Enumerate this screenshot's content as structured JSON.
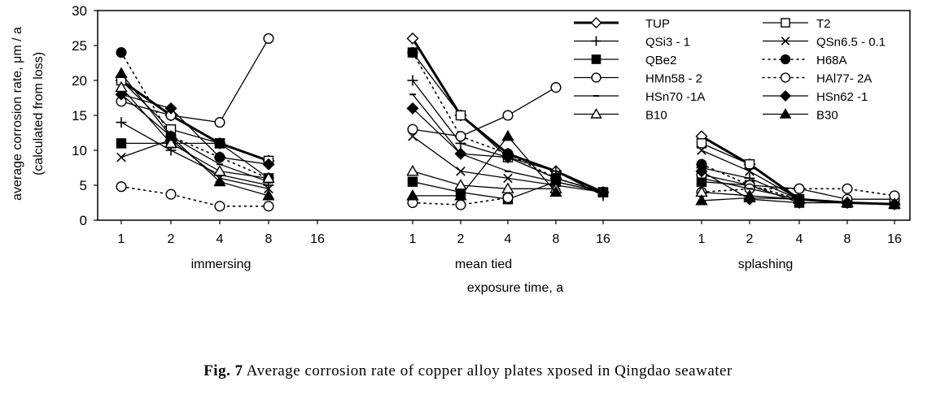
{
  "chart_data": {
    "type": "line",
    "ylabel_line1": "average corrosion rate, μm / a",
    "ylabel_line2": "(calculated from loss)",
    "xlabel": "exposure time, a",
    "ylim": [
      0,
      30
    ],
    "yticks": [
      0,
      5,
      10,
      15,
      20,
      25,
      30
    ],
    "grid": false,
    "legend_position": "top-right",
    "panels": [
      {
        "name": "immersing",
        "categories": [
          "1",
          "2",
          "4",
          "8",
          "16"
        ]
      },
      {
        "name": "mean tied",
        "categories": [
          "1",
          "2",
          "4",
          "8",
          "16"
        ]
      },
      {
        "name": "splashing",
        "categories": [
          "1",
          "2",
          "4",
          "8",
          "16"
        ]
      }
    ],
    "series": [
      {
        "name": "TUP",
        "marker": "diamond-open",
        "line": "thick",
        "values": [
          [
            20,
            15,
            11,
            8.5,
            null
          ],
          [
            26,
            15,
            9.5,
            7,
            4
          ],
          [
            12,
            8,
            3,
            2.5,
            2.3
          ]
        ]
      },
      {
        "name": "T2",
        "marker": "square-open",
        "line": "solid",
        "values": [
          [
            20,
            13,
            11,
            8.5,
            null
          ],
          [
            24,
            15,
            9,
            6,
            4
          ],
          [
            11,
            8,
            3,
            2.5,
            2.3
          ]
        ]
      },
      {
        "name": "QSi3 - 1",
        "marker": "plus",
        "line": "solid",
        "values": [
          [
            14,
            10,
            6.5,
            5,
            null
          ],
          [
            20,
            11,
            9,
            7,
            3.5
          ],
          [
            7.5,
            6,
            3,
            2.5,
            2.3
          ]
        ]
      },
      {
        "name": "QSn6.5 - 0.1",
        "marker": "cross",
        "line": "solid",
        "values": [
          [
            9,
            11.5,
            6,
            4.5,
            null
          ],
          [
            12,
            7,
            6,
            5,
            4
          ],
          [
            10,
            7,
            3,
            2.5,
            2.3
          ]
        ]
      },
      {
        "name": "QBe2",
        "marker": "square-filled",
        "line": "solid",
        "values": [
          [
            11,
            11,
            11,
            6,
            null
          ],
          [
            5.5,
            4,
            3,
            5.5,
            4
          ],
          [
            5.5,
            5,
            2.5,
            2.5,
            2.3
          ]
        ]
      },
      {
        "name": "H68A",
        "marker": "circle-filled",
        "line": "dotted",
        "values": [
          [
            24,
            12,
            9,
            6,
            null
          ],
          [
            24,
            12,
            9.5,
            6,
            4
          ],
          [
            8,
            5,
            3,
            2.5,
            2.3
          ]
        ]
      },
      {
        "name": "HMn58 - 2",
        "marker": "circle-open",
        "line": "solid",
        "values": [
          [
            17,
            15,
            14,
            26,
            null
          ],
          [
            13,
            12,
            15,
            19,
            null
          ],
          [
            6.5,
            5,
            4.5,
            3,
            3
          ]
        ]
      },
      {
        "name": "HAl77- 2A",
        "marker": "circle-open",
        "line": "dotted",
        "values": [
          [
            4.8,
            3.7,
            2,
            2,
            null
          ],
          [
            2.5,
            2.2,
            3.2,
            null,
            null
          ],
          [
            4,
            4.5,
            4.5,
            4.5,
            3.5
          ]
        ]
      },
      {
        "name": "HSn70 -1A",
        "marker": "dot",
        "line": "solid",
        "values": [
          [
            18,
            12,
            8,
            5.5,
            null
          ],
          [
            18,
            9.5,
            7,
            5.5,
            4
          ],
          [
            6,
            4.5,
            3,
            2.5,
            2.3
          ]
        ]
      },
      {
        "name": "HSn62 -1",
        "marker": "diamond-filled",
        "line": "solid",
        "values": [
          [
            18,
            16,
            9,
            8,
            null
          ],
          [
            16,
            9.5,
            9,
            6,
            4
          ],
          [
            7,
            3,
            2.5,
            2.5,
            2.3
          ]
        ]
      },
      {
        "name": "B10",
        "marker": "triangle-open",
        "line": "solid",
        "values": [
          [
            19,
            11,
            7,
            6,
            null
          ],
          [
            7,
            5,
            4.5,
            4.5,
            null
          ],
          [
            4,
            3.5,
            3,
            2.5,
            2.3
          ]
        ]
      },
      {
        "name": "B30",
        "marker": "triangle-filled",
        "line": "solid",
        "values": [
          [
            21,
            12,
            5.5,
            3.5,
            null
          ],
          [
            3.5,
            3.5,
            12,
            4,
            null
          ],
          [
            2.8,
            3.2,
            3,
            2.5,
            2.3
          ]
        ]
      }
    ]
  },
  "caption": {
    "prefix": "Fig. 7",
    "text": " Average corrosion rate of copper alloy plates xposed in Qingdao seawater"
  }
}
